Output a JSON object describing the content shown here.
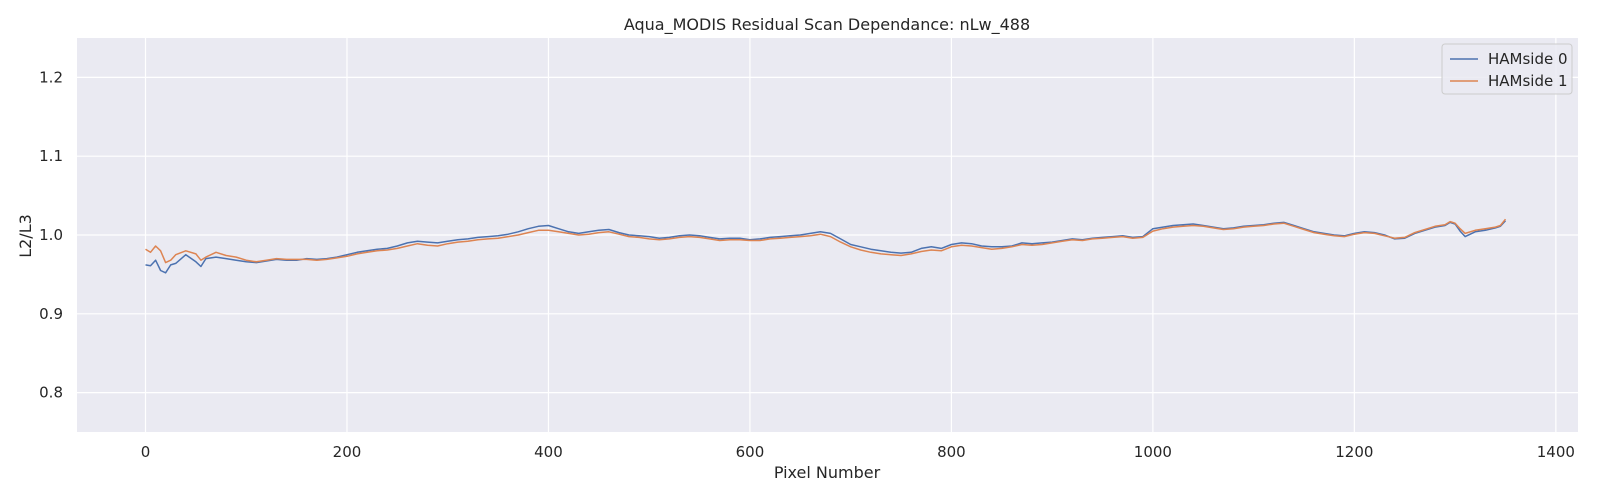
{
  "chart_data": {
    "type": "line",
    "title": "Aqua_MODIS Residual Scan Dependance: nLw_488",
    "xlabel": "Pixel Number",
    "ylabel": "L2/L3",
    "xlim": [
      -68,
      1422
    ],
    "ylim": [
      0.75,
      1.25
    ],
    "xticks": [
      0,
      200,
      400,
      600,
      800,
      1000,
      1200,
      1400
    ],
    "xtick_labels": [
      "0",
      "200",
      "400",
      "600",
      "800",
      "1000",
      "1200",
      "1400"
    ],
    "yticks": [
      0.8,
      0.9,
      1.0,
      1.1,
      1.2
    ],
    "ytick_labels": [
      "0.8",
      "0.9",
      "1.0",
      "1.1",
      "1.2"
    ],
    "grid": true,
    "legend_position": "top-right",
    "background_color": "#eaeaf2",
    "grid_color": "#ffffff",
    "series": [
      {
        "name": "HAMside 0",
        "color": "#4c72b0",
        "x": [
          0,
          5,
          10,
          15,
          20,
          25,
          30,
          40,
          50,
          55,
          60,
          70,
          80,
          90,
          100,
          110,
          120,
          130,
          140,
          150,
          160,
          170,
          180,
          190,
          200,
          210,
          220,
          230,
          240,
          250,
          260,
          270,
          280,
          290,
          300,
          310,
          320,
          330,
          340,
          350,
          360,
          370,
          380,
          390,
          400,
          410,
          420,
          430,
          440,
          450,
          460,
          470,
          480,
          490,
          500,
          510,
          520,
          530,
          540,
          550,
          560,
          570,
          580,
          590,
          600,
          610,
          620,
          630,
          640,
          650,
          660,
          670,
          680,
          690,
          700,
          710,
          720,
          730,
          740,
          750,
          760,
          770,
          780,
          790,
          800,
          810,
          820,
          830,
          840,
          850,
          860,
          870,
          880,
          890,
          900,
          910,
          920,
          930,
          940,
          950,
          960,
          970,
          980,
          990,
          1000,
          1010,
          1020,
          1030,
          1040,
          1050,
          1060,
          1070,
          1080,
          1090,
          1100,
          1110,
          1120,
          1130,
          1140,
          1150,
          1160,
          1170,
          1180,
          1190,
          1200,
          1210,
          1220,
          1230,
          1240,
          1250,
          1260,
          1270,
          1280,
          1290,
          1295,
          1300,
          1305,
          1310,
          1320,
          1330,
          1340,
          1345,
          1350
        ],
        "values": [
          0.962,
          0.961,
          0.968,
          0.955,
          0.952,
          0.962,
          0.964,
          0.975,
          0.966,
          0.96,
          0.97,
          0.972,
          0.97,
          0.968,
          0.966,
          0.965,
          0.967,
          0.969,
          0.968,
          0.968,
          0.97,
          0.969,
          0.97,
          0.972,
          0.975,
          0.978,
          0.98,
          0.982,
          0.983,
          0.986,
          0.99,
          0.992,
          0.991,
          0.99,
          0.992,
          0.994,
          0.995,
          0.997,
          0.998,
          0.999,
          1.001,
          1.004,
          1.008,
          1.011,
          1.012,
          1.008,
          1.004,
          1.002,
          1.004,
          1.006,
          1.007,
          1.003,
          1.0,
          0.999,
          0.998,
          0.996,
          0.997,
          0.999,
          1.0,
          0.999,
          0.997,
          0.995,
          0.996,
          0.996,
          0.994,
          0.995,
          0.997,
          0.998,
          0.999,
          1.0,
          1.002,
          1.004,
          1.002,
          0.995,
          0.988,
          0.985,
          0.982,
          0.98,
          0.978,
          0.977,
          0.978,
          0.983,
          0.985,
          0.983,
          0.988,
          0.99,
          0.989,
          0.986,
          0.985,
          0.985,
          0.986,
          0.99,
          0.989,
          0.99,
          0.991,
          0.993,
          0.995,
          0.994,
          0.996,
          0.997,
          0.998,
          0.999,
          0.997,
          0.998,
          1.008,
          1.01,
          1.012,
          1.013,
          1.014,
          1.012,
          1.01,
          1.008,
          1.009,
          1.011,
          1.012,
          1.013,
          1.015,
          1.016,
          1.012,
          1.008,
          1.004,
          1.002,
          1.0,
          0.999,
          1.002,
          1.004,
          1.003,
          1.0,
          0.995,
          0.996,
          1.002,
          1.006,
          1.01,
          1.012,
          1.016,
          1.014,
          1.005,
          0.998,
          1.004,
          1.006,
          1.009,
          1.011,
          1.018
        ]
      },
      {
        "name": "HAMside 1",
        "color": "#dd8452",
        "x": [
          0,
          5,
          10,
          15,
          20,
          25,
          30,
          40,
          50,
          55,
          60,
          70,
          80,
          90,
          100,
          110,
          120,
          130,
          140,
          150,
          160,
          170,
          180,
          190,
          200,
          210,
          220,
          230,
          240,
          250,
          260,
          270,
          280,
          290,
          300,
          310,
          320,
          330,
          340,
          350,
          360,
          370,
          380,
          390,
          400,
          410,
          420,
          430,
          440,
          450,
          460,
          470,
          480,
          490,
          500,
          510,
          520,
          530,
          540,
          550,
          560,
          570,
          580,
          590,
          600,
          610,
          620,
          630,
          640,
          650,
          660,
          670,
          680,
          690,
          700,
          710,
          720,
          730,
          740,
          750,
          760,
          770,
          780,
          790,
          800,
          810,
          820,
          830,
          840,
          850,
          860,
          870,
          880,
          890,
          900,
          910,
          920,
          930,
          940,
          950,
          960,
          970,
          980,
          990,
          1000,
          1010,
          1020,
          1030,
          1040,
          1050,
          1060,
          1070,
          1080,
          1090,
          1100,
          1110,
          1120,
          1130,
          1140,
          1150,
          1160,
          1170,
          1180,
          1190,
          1200,
          1210,
          1220,
          1230,
          1240,
          1250,
          1260,
          1270,
          1280,
          1290,
          1295,
          1300,
          1305,
          1310,
          1320,
          1330,
          1340,
          1345,
          1350
        ],
        "values": [
          0.982,
          0.978,
          0.986,
          0.98,
          0.965,
          0.968,
          0.975,
          0.98,
          0.976,
          0.968,
          0.972,
          0.978,
          0.974,
          0.972,
          0.968,
          0.966,
          0.968,
          0.97,
          0.969,
          0.969,
          0.969,
          0.968,
          0.969,
          0.971,
          0.973,
          0.976,
          0.978,
          0.98,
          0.981,
          0.983,
          0.986,
          0.989,
          0.987,
          0.986,
          0.989,
          0.991,
          0.992,
          0.994,
          0.995,
          0.996,
          0.998,
          1.0,
          1.003,
          1.006,
          1.006,
          1.004,
          1.002,
          1.0,
          1.001,
          1.003,
          1.004,
          1.001,
          0.998,
          0.997,
          0.995,
          0.994,
          0.995,
          0.997,
          0.998,
          0.997,
          0.995,
          0.993,
          0.994,
          0.994,
          0.993,
          0.993,
          0.995,
          0.996,
          0.997,
          0.998,
          0.999,
          1.001,
          0.998,
          0.991,
          0.985,
          0.981,
          0.978,
          0.976,
          0.975,
          0.974,
          0.976,
          0.979,
          0.981,
          0.98,
          0.985,
          0.987,
          0.986,
          0.984,
          0.982,
          0.983,
          0.985,
          0.988,
          0.987,
          0.988,
          0.99,
          0.992,
          0.994,
          0.993,
          0.995,
          0.996,
          0.997,
          0.998,
          0.996,
          0.997,
          1.005,
          1.008,
          1.01,
          1.011,
          1.012,
          1.011,
          1.009,
          1.007,
          1.008,
          1.01,
          1.011,
          1.012,
          1.014,
          1.015,
          1.011,
          1.007,
          1.003,
          1.001,
          0.999,
          0.998,
          1.001,
          1.003,
          1.002,
          0.999,
          0.996,
          0.997,
          1.003,
          1.007,
          1.011,
          1.013,
          1.017,
          1.015,
          1.008,
          1.002,
          1.006,
          1.008,
          1.01,
          1.012,
          1.02
        ]
      }
    ]
  }
}
